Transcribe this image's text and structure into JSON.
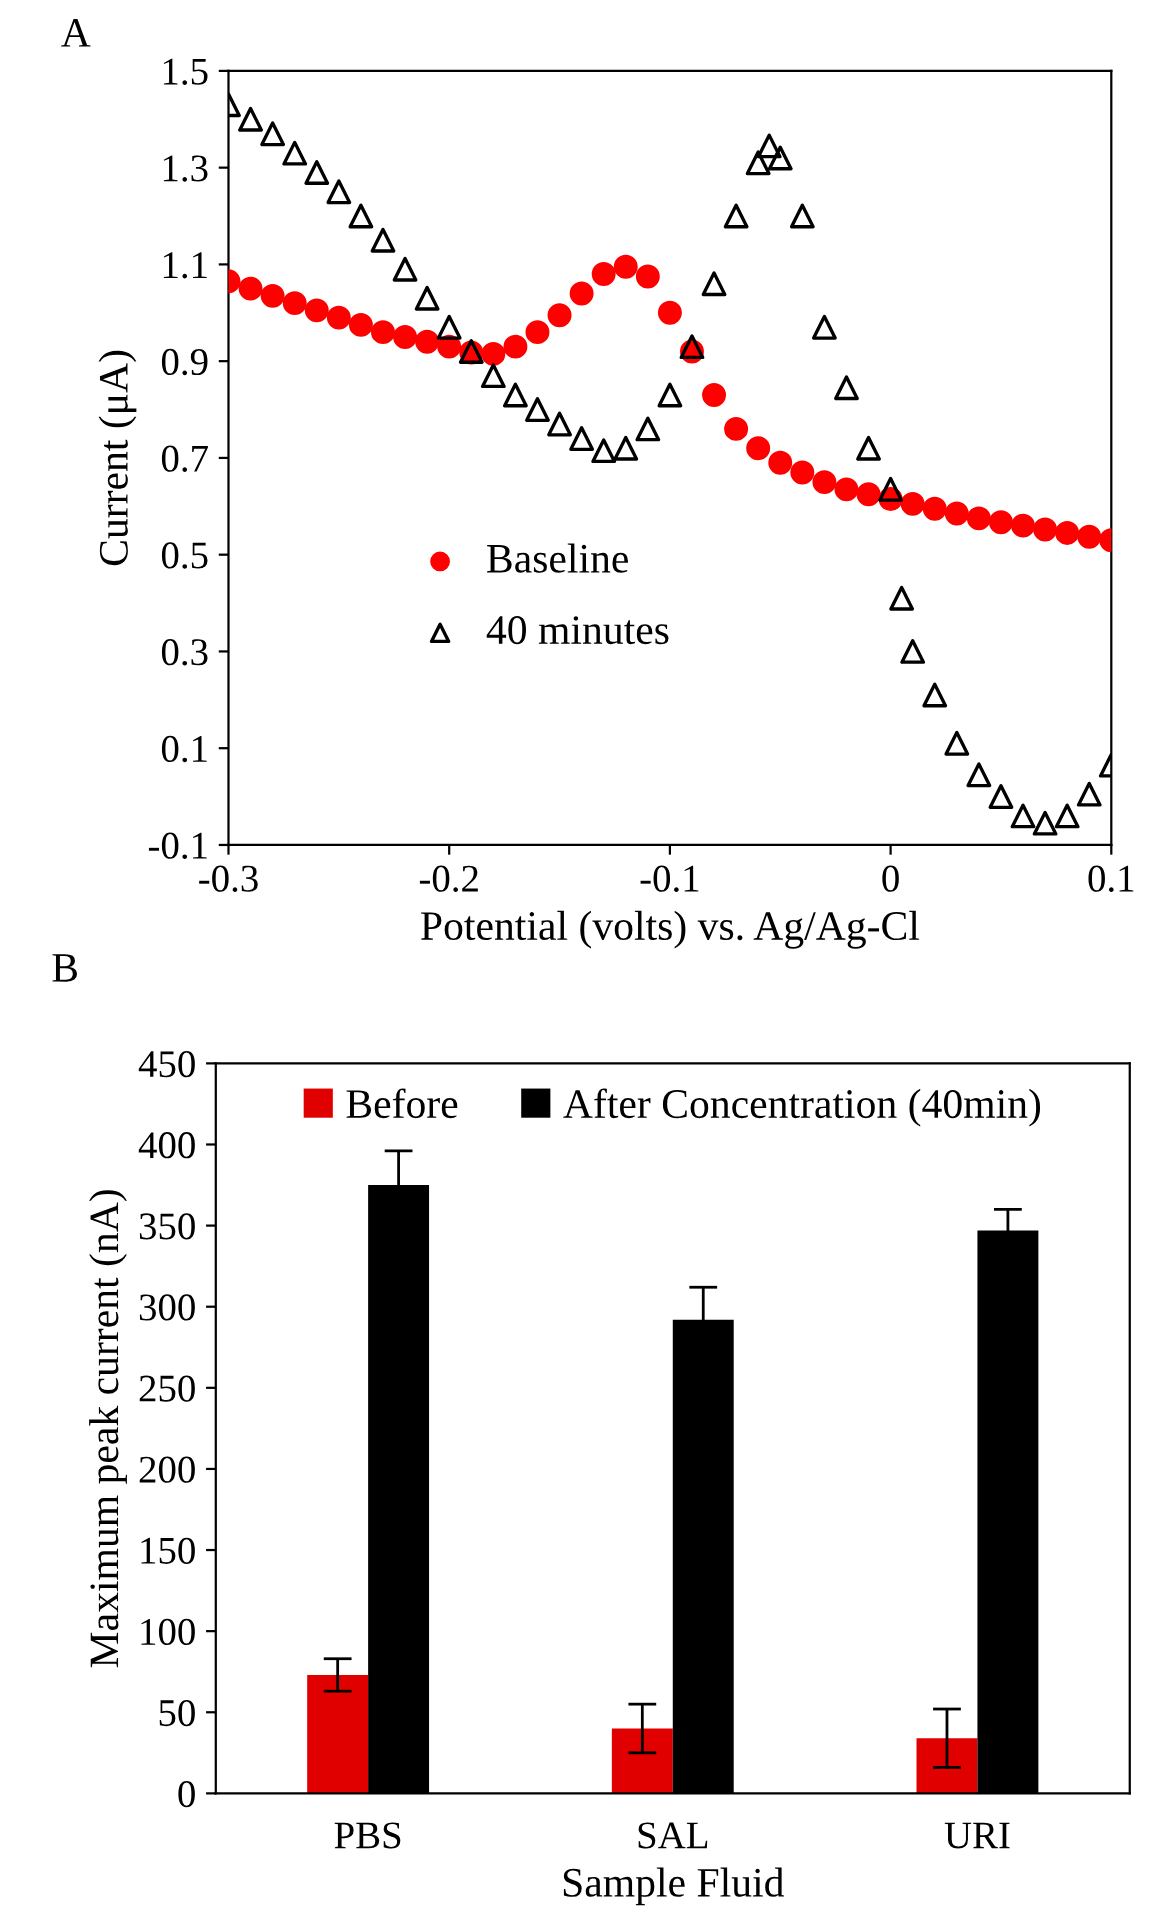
{
  "chart_data": [
    {
      "type": "scatter",
      "xlabel": "Potential (volts) vs. Ag/Ag-Cl",
      "ylabel": "Current (μA)",
      "annotations": [
        "A"
      ],
      "xlim": [
        -0.3,
        0.1
      ],
      "xticks": [
        -0.3,
        -0.2,
        -0.1,
        0,
        0.1
      ],
      "ylim": [
        -0.1,
        1.5
      ],
      "yticks": [
        -0.1,
        0.1,
        0.3,
        0.5,
        0.7,
        0.9,
        1.1,
        1.3,
        1.5
      ],
      "grid": false,
      "legend": "bottom left",
      "series": [
        {
          "name": "Baseline",
          "color": "#ff0000",
          "marker": "circle",
          "x": [
            -0.3,
            -0.29,
            -0.28,
            -0.27,
            -0.26,
            -0.25,
            -0.24,
            -0.23,
            -0.22,
            -0.21,
            -0.2,
            -0.19,
            -0.18,
            -0.17,
            -0.16,
            -0.15,
            -0.14,
            -0.13,
            -0.12,
            -0.11,
            -0.1,
            -0.09,
            -0.08,
            -0.07,
            -0.06,
            -0.05,
            -0.04,
            -0.03,
            -0.02,
            -0.01,
            0,
            0.01,
            0.02,
            0.03,
            0.04,
            0.05,
            0.06,
            0.07,
            0.08,
            0.09,
            0.1
          ],
          "values": [
            1.065,
            1.05,
            1.035,
            1.02,
            1.005,
            0.99,
            0.975,
            0.96,
            0.95,
            0.94,
            0.93,
            0.918,
            0.915,
            0.93,
            0.96,
            0.995,
            1.04,
            1.08,
            1.095,
            1.075,
            1.0,
            0.92,
            0.83,
            0.76,
            0.72,
            0.69,
            0.67,
            0.65,
            0.635,
            0.625,
            0.615,
            0.605,
            0.595,
            0.585,
            0.575,
            0.567,
            0.56,
            0.552,
            0.545,
            0.537,
            0.53
          ]
        },
        {
          "name": "40 minutes",
          "color": "#000000",
          "marker": "triangle",
          "x": [
            -0.3,
            -0.29,
            -0.28,
            -0.27,
            -0.26,
            -0.25,
            -0.24,
            -0.23,
            -0.22,
            -0.21,
            -0.2,
            -0.19,
            -0.18,
            -0.17,
            -0.16,
            -0.15,
            -0.14,
            -0.13,
            -0.12,
            -0.11,
            -0.1,
            -0.09,
            -0.08,
            -0.07,
            -0.06,
            -0.055,
            -0.05,
            -0.04,
            -0.03,
            -0.02,
            -0.01,
            0,
            0.005,
            0.01,
            0.02,
            0.03,
            0.04,
            0.05,
            0.06,
            0.07,
            0.08,
            0.09,
            0.1
          ],
          "values": [
            1.43,
            1.4,
            1.37,
            1.33,
            1.29,
            1.25,
            1.2,
            1.15,
            1.09,
            1.03,
            0.97,
            0.92,
            0.87,
            0.83,
            0.8,
            0.77,
            0.74,
            0.715,
            0.72,
            0.76,
            0.83,
            0.93,
            1.06,
            1.2,
            1.31,
            1.345,
            1.32,
            1.2,
            0.97,
            0.845,
            0.72,
            0.635,
            0.41,
            0.3,
            0.21,
            0.11,
            0.045,
            0.0,
            -0.04,
            -0.055,
            -0.04,
            0.005,
            0.065
          ]
        }
      ]
    },
    {
      "type": "bar",
      "xlabel": "Sample Fluid",
      "ylabel": "Maximum peak current (nA)",
      "annotations": [
        "B"
      ],
      "categories": [
        "PBS",
        "SAL",
        "URI"
      ],
      "ylim": [
        0,
        450
      ],
      "yticks": [
        0,
        50,
        100,
        150,
        200,
        250,
        300,
        350,
        400,
        450
      ],
      "grid": false,
      "legend": "top",
      "series": [
        {
          "name": "Before",
          "color": "#e00000",
          "values": [
            73,
            40,
            34
          ],
          "errors": [
            10,
            15,
            18
          ]
        },
        {
          "name": "After Concentration (40min)",
          "color": "#000000",
          "values": [
            375,
            292,
            347
          ],
          "errors": [
            21,
            20,
            13
          ]
        }
      ]
    }
  ]
}
